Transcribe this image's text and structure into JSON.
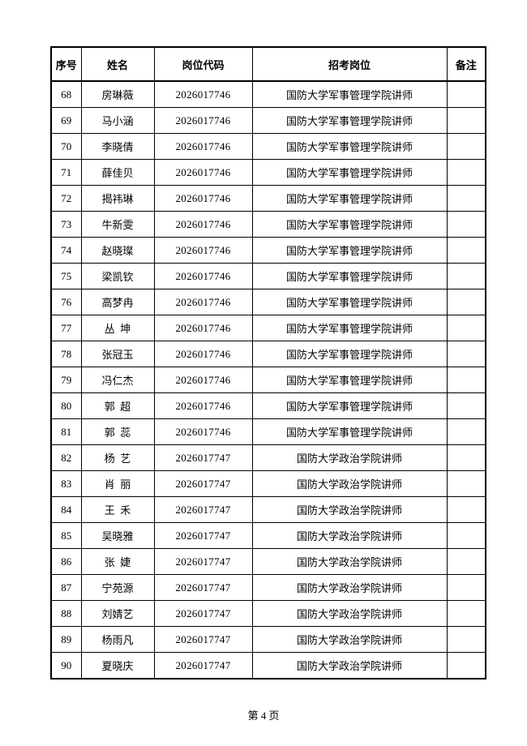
{
  "page": {
    "footer": {
      "page_label": "第 4 页"
    },
    "table": {
      "headers": [
        "序号",
        "姓名",
        "岗位代码",
        "招考岗位",
        "备注"
      ],
      "rows": [
        {
          "no": "68",
          "name": "房琳薇",
          "code": "2026017746",
          "position": "国防大学军事管理学院讲师",
          "remark": ""
        },
        {
          "no": "69",
          "name": "马小涵",
          "code": "2026017746",
          "position": "国防大学军事管理学院讲师",
          "remark": ""
        },
        {
          "no": "70",
          "name": "李晓倩",
          "code": "2026017746",
          "position": "国防大学军事管理学院讲师",
          "remark": ""
        },
        {
          "no": "71",
          "name": "薛佳贝",
          "code": "2026017746",
          "position": "国防大学军事管理学院讲师",
          "remark": ""
        },
        {
          "no": "72",
          "name": "揭祎琳",
          "code": "2026017746",
          "position": "国防大学军事管理学院讲师",
          "remark": ""
        },
        {
          "no": "73",
          "name": "牛新雯",
          "code": "2026017746",
          "position": "国防大学军事管理学院讲师",
          "remark": ""
        },
        {
          "no": "74",
          "name": "赵晓璨",
          "code": "2026017746",
          "position": "国防大学军事管理学院讲师",
          "remark": ""
        },
        {
          "no": "75",
          "name": "梁凯钦",
          "code": "2026017746",
          "position": "国防大学军事管理学院讲师",
          "remark": ""
        },
        {
          "no": "76",
          "name": "高梦冉",
          "code": "2026017746",
          "position": "国防大学军事管理学院讲师",
          "remark": ""
        },
        {
          "no": "77",
          "name": "丛 坤",
          "code": "2026017746",
          "position": "国防大学军事管理学院讲师",
          "remark": ""
        },
        {
          "no": "78",
          "name": "张冠玉",
          "code": "2026017746",
          "position": "国防大学军事管理学院讲师",
          "remark": ""
        },
        {
          "no": "79",
          "name": "冯仁杰",
          "code": "2026017746",
          "position": "国防大学军事管理学院讲师",
          "remark": ""
        },
        {
          "no": "80",
          "name": "郭 超",
          "code": "2026017746",
          "position": "国防大学军事管理学院讲师",
          "remark": ""
        },
        {
          "no": "81",
          "name": "郭 蕊",
          "code": "2026017746",
          "position": "国防大学军事管理学院讲师",
          "remark": ""
        },
        {
          "no": "82",
          "name": "杨 艺",
          "code": "2026017747",
          "position": "国防大学政治学院讲师",
          "remark": ""
        },
        {
          "no": "83",
          "name": "肖 丽",
          "code": "2026017747",
          "position": "国防大学政治学院讲师",
          "remark": ""
        },
        {
          "no": "84",
          "name": "王 禾",
          "code": "2026017747",
          "position": "国防大学政治学院讲师",
          "remark": ""
        },
        {
          "no": "85",
          "name": "吴晓雅",
          "code": "2026017747",
          "position": "国防大学政治学院讲师",
          "remark": ""
        },
        {
          "no": "86",
          "name": "张 婕",
          "code": "2026017747",
          "position": "国防大学政治学院讲师",
          "remark": ""
        },
        {
          "no": "87",
          "name": "宁苑源",
          "code": "2026017747",
          "position": "国防大学政治学院讲师",
          "remark": ""
        },
        {
          "no": "88",
          "name": "刘婧艺",
          "code": "2026017747",
          "position": "国防大学政治学院讲师",
          "remark": ""
        },
        {
          "no": "89",
          "name": "杨雨凡",
          "code": "2026017747",
          "position": "国防大学政治学院讲师",
          "remark": ""
        },
        {
          "no": "90",
          "name": "夏晓庆",
          "code": "2026017747",
          "position": "国防大学政治学院讲师",
          "remark": ""
        }
      ]
    }
  }
}
